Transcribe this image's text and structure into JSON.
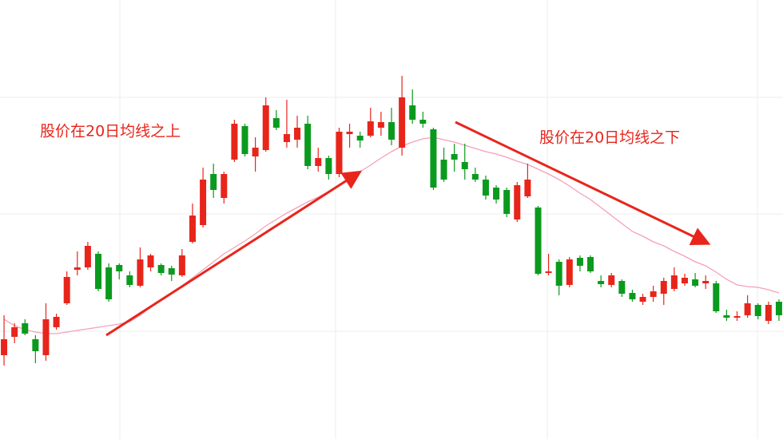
{
  "chart_data": {
    "type": "candlestick",
    "annotations": [
      "股价在20日均线之上",
      "股价在20日均线之下"
    ],
    "up_color": "#e8251b",
    "down_color": "#0a9a1e",
    "ylim": [
      0,
      55
    ],
    "open": [
      10.5,
      12.8,
      14.5,
      12.5,
      10.5,
      14.0,
      17.0,
      21.2,
      21.5,
      23.2,
      21.5,
      21.8,
      20.5,
      19.2,
      21.5,
      21.8,
      21.4,
      20.5,
      24.7,
      26.8,
      33.2,
      30.2,
      35.0,
      39.2,
      35.4,
      36.2,
      40.2,
      37.2,
      37.5,
      39.5,
      34.2,
      35.2,
      33.2,
      38.2,
      38.0,
      38.0,
      39.0,
      39.7,
      36.5,
      41.8,
      40.0,
      38.8,
      35.0,
      35.7,
      34.7,
      33.2,
      32.5,
      31.5,
      31.2,
      27.5,
      30.4,
      29.0,
      20.8,
      22.2,
      19.3,
      22.7,
      22.8,
      19.8,
      19.3,
      19.8,
      18.3,
      17.2,
      17.8,
      18.2,
      18.8,
      19.5,
      20.0,
      19.5,
      19.5,
      15.5,
      15.2,
      15.5,
      16.8,
      14.8,
      17.2
    ],
    "high": [
      15.5,
      14.5,
      15.0,
      13.0,
      17.0,
      15.7,
      21.0,
      23.5,
      24.7,
      23.5,
      22.0,
      22.0,
      21.0,
      24.0,
      23.2,
      22.0,
      21.7,
      23.8,
      29.5,
      34.0,
      34.5,
      33.5,
      40.0,
      39.5,
      37.8,
      42.8,
      41.2,
      42.5,
      40.5,
      40.5,
      36.5,
      35.5,
      39.0,
      39.5,
      38.5,
      41.5,
      41.0,
      41.5,
      45.5,
      43.8,
      41.0,
      39.0,
      36.5,
      37.0,
      37.0,
      34.0,
      33.0,
      31.8,
      31.5,
      32.2,
      34.5,
      29.2,
      23.2,
      22.5,
      22.8,
      23.0,
      23.0,
      20.5,
      20.8,
      20.0,
      18.7,
      18.2,
      19.2,
      20.2,
      21.5,
      20.7,
      20.8,
      20.5,
      19.8,
      16.2,
      16.0,
      18.0,
      17.0,
      17.2,
      17.5
    ],
    "low": [
      9.2,
      12.0,
      13.0,
      9.5,
      9.8,
      13.7,
      16.8,
      20.5,
      21.2,
      18.5,
      17.2,
      20.0,
      19.0,
      19.0,
      21.0,
      20.5,
      19.8,
      20.3,
      24.5,
      26.5,
      30.2,
      29.5,
      34.7,
      35.4,
      33.5,
      36.0,
      38.7,
      36.5,
      36.5,
      33.8,
      33.5,
      32.5,
      32.8,
      36.5,
      36.5,
      37.8,
      38.0,
      36.8,
      35.5,
      39.5,
      39.0,
      31.2,
      32.2,
      33.5,
      32.5,
      32.2,
      30.0,
      29.5,
      27.8,
      27.2,
      30.2,
      20.5,
      20.5,
      18.0,
      19.0,
      21.0,
      20.8,
      19.0,
      19.0,
      17.8,
      17.2,
      16.8,
      17.2,
      16.8,
      18.5,
      19.2,
      19.0,
      18.8,
      15.8,
      14.8,
      14.8,
      15.2,
      15.0,
      14.4,
      14.8
    ],
    "close": [
      12.5,
      14.0,
      13.2,
      11.0,
      15.0,
      15.3,
      20.3,
      21.5,
      24.2,
      18.8,
      17.5,
      21.0,
      19.3,
      22.5,
      23.0,
      20.8,
      20.6,
      23.0,
      28.0,
      32.5,
      31.2,
      33.2,
      39.5,
      35.7,
      36.5,
      41.8,
      39.0,
      38.2,
      39.0,
      34.2,
      35.2,
      33.2,
      38.5,
      38.5,
      37.4,
      39.8,
      39.7,
      37.5,
      42.8,
      40.0,
      39.5,
      31.5,
      32.5,
      35.0,
      33.8,
      32.5,
      30.5,
      30.0,
      28.2,
      31.8,
      32.5,
      20.7,
      21.0,
      19.2,
      22.5,
      21.7,
      21.0,
      19.4,
      20.5,
      18.2,
      17.5,
      17.8,
      18.5,
      19.8,
      20.5,
      20.2,
      19.2,
      19.8,
      16.0,
      15.2,
      15.4,
      17.0,
      15.4,
      16.8,
      15.5
    ],
    "series": [
      {
        "color": "#f5a0b8",
        "values": [
          15.0,
          14.2,
          13.7,
          13.4,
          13.2,
          13.2,
          13.4,
          13.6,
          13.8,
          14.0,
          14.2,
          14.4,
          14.7,
          15.5,
          16.5,
          17.5,
          18.2,
          19.2,
          20.2,
          21.2,
          22.2,
          23.2,
          24.0,
          24.8,
          25.7,
          26.7,
          27.5,
          28.3,
          29.0,
          29.7,
          30.3,
          31.0,
          31.7,
          32.5,
          33.5,
          34.3,
          35.2,
          36.0,
          36.7,
          37.2,
          37.6,
          37.8,
          37.5,
          37.2,
          36.8,
          36.4,
          36.0,
          35.7,
          35.3,
          34.8,
          34.4,
          33.8,
          33.2,
          32.5,
          31.7,
          30.8,
          30.0,
          29.0,
          28.0,
          27.0,
          26.0,
          25.4,
          24.7,
          24.2,
          23.5,
          22.9,
          22.2,
          21.7,
          20.9,
          20.0,
          19.3,
          19.1,
          19.0,
          18.7,
          18.3
        ]
      }
    ]
  }
}
